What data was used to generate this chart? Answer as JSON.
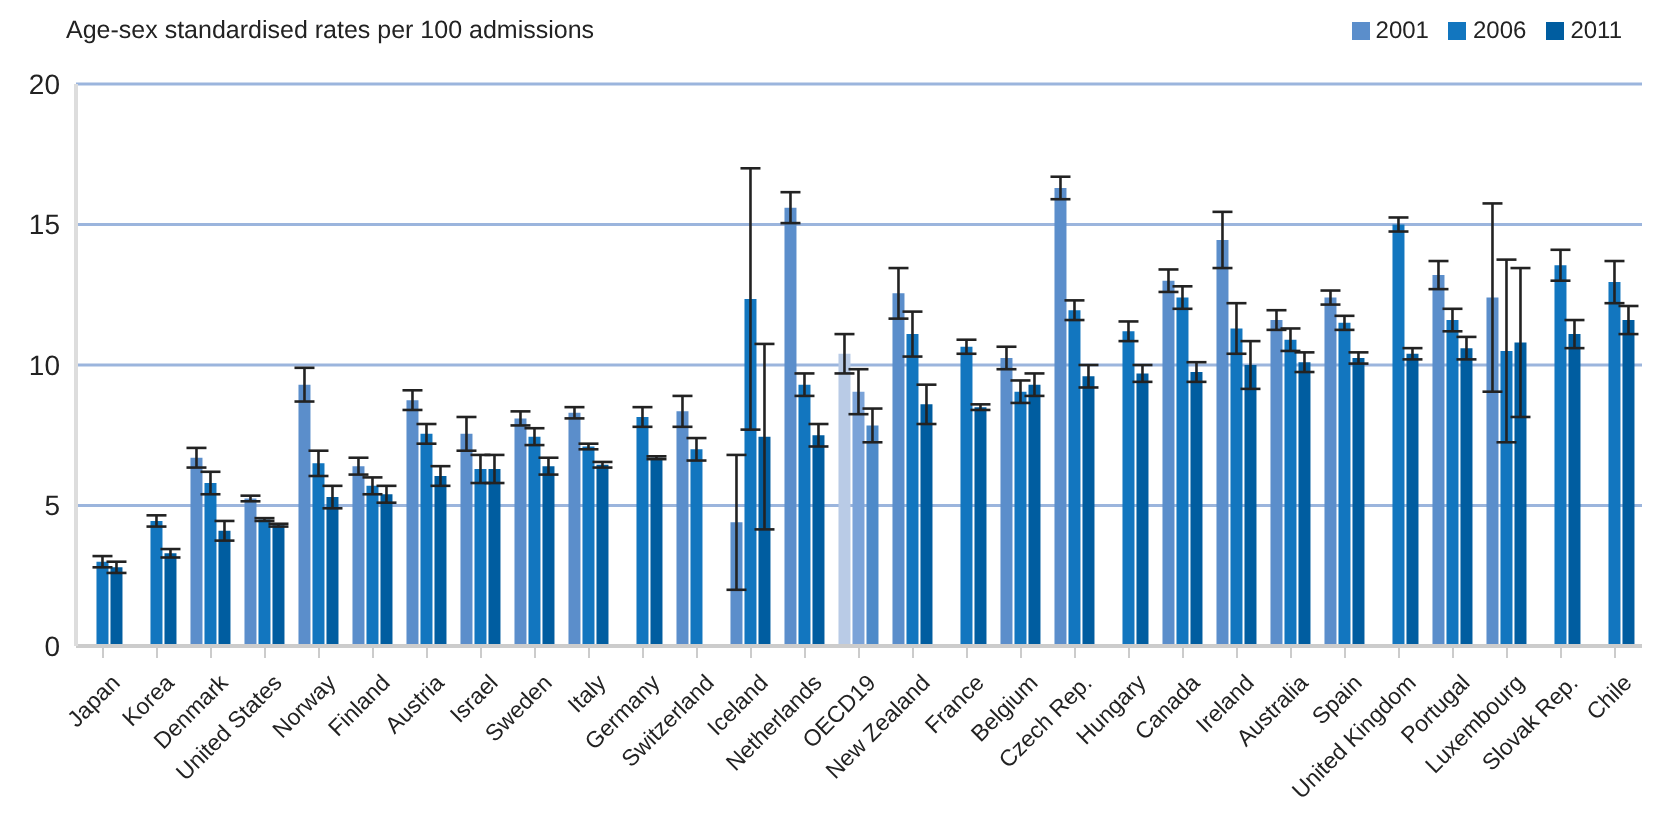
{
  "chart_data": {
    "type": "bar",
    "ylabel": "Age-sex standardised rates per 100 admissions",
    "categories": [
      "Japan",
      "Korea",
      "Denmark",
      "United States",
      "Norway",
      "Finland",
      "Austria",
      "Israel",
      "Sweden",
      "Italy",
      "Germany",
      "Switzerland",
      "Iceland",
      "Netherlands",
      "OECD19",
      "New Zealand",
      "France",
      "Belgium",
      "Czech Rep.",
      "Hungary",
      "Canada",
      "Ireland",
      "Australia",
      "Spain",
      "United Kingdom",
      "Portugal",
      "Luxembourg",
      "Slovak Rep.",
      "Chile"
    ],
    "series": [
      {
        "name": "2001",
        "color": "#5b8ecb",
        "colors": [
          "#5b8ecb",
          "#5b8ecb",
          "#5b8ecb",
          "#5b8ecb",
          "#5b8ecb",
          "#5b8ecb",
          "#5b8ecb",
          "#5b8ecb",
          "#5b8ecb",
          "#5b8ecb",
          "#5b8ecb",
          "#5b8ecb",
          "#5b8ecb",
          "#5b8ecb",
          "#b9cbe6",
          "#5b8ecb",
          "#5b8ecb",
          "#5b8ecb",
          "#5b8ecb",
          "#5b8ecb",
          "#5b8ecb",
          "#5b8ecb",
          "#5b8ecb",
          "#5b8ecb",
          "#5b8ecb",
          "#5b8ecb",
          "#5b8ecb",
          "#5b8ecb",
          "#5b8ecb"
        ],
        "values": [
          null,
          null,
          6.7,
          5.25,
          9.3,
          6.4,
          8.75,
          7.55,
          8.1,
          8.3,
          null,
          8.35,
          4.4,
          15.6,
          10.4,
          12.55,
          null,
          10.25,
          16.3,
          null,
          13.0,
          14.45,
          11.6,
          12.4,
          null,
          13.2,
          12.4,
          null,
          null
        ],
        "errors": [
          null,
          null,
          0.35,
          0.1,
          0.6,
          0.3,
          0.35,
          0.6,
          0.25,
          0.2,
          null,
          0.55,
          2.4,
          0.55,
          0.7,
          0.9,
          null,
          0.4,
          0.4,
          null,
          0.4,
          1.0,
          0.35,
          0.25,
          null,
          0.5,
          3.35,
          null,
          null
        ]
      },
      {
        "name": "2006",
        "color": "#1276bf",
        "colors": [
          "#1276bf",
          "#1276bf",
          "#1276bf",
          "#1276bf",
          "#1276bf",
          "#1276bf",
          "#1276bf",
          "#1276bf",
          "#1276bf",
          "#1276bf",
          "#1276bf",
          "#1276bf",
          "#1276bf",
          "#1276bf",
          "#7ba3d8",
          "#1276bf",
          "#1276bf",
          "#1276bf",
          "#1276bf",
          "#1276bf",
          "#1276bf",
          "#1276bf",
          "#1276bf",
          "#1276bf",
          "#1276bf",
          "#1276bf",
          "#1276bf",
          "#1276bf",
          "#1276bf"
        ],
        "values": [
          3.0,
          4.45,
          5.8,
          4.5,
          6.5,
          5.7,
          7.55,
          6.3,
          7.45,
          7.1,
          8.15,
          7.0,
          12.35,
          9.3,
          9.05,
          11.1,
          10.65,
          9.05,
          11.95,
          11.2,
          12.4,
          11.3,
          10.9,
          11.5,
          15.0,
          11.6,
          10.5,
          13.55,
          12.95
        ],
        "errors": [
          0.2,
          0.2,
          0.4,
          0.05,
          0.45,
          0.3,
          0.35,
          0.5,
          0.3,
          0.1,
          0.35,
          0.4,
          4.65,
          0.4,
          0.8,
          0.8,
          0.25,
          0.4,
          0.35,
          0.35,
          0.4,
          0.9,
          0.4,
          0.25,
          0.25,
          0.4,
          3.25,
          0.55,
          0.75
        ]
      },
      {
        "name": "2011",
        "color": "#005da0",
        "colors": [
          "#005da0",
          "#005da0",
          "#005da0",
          "#005da0",
          "#005da0",
          "#005da0",
          "#005da0",
          "#005da0",
          "#005da0",
          "#005da0",
          "#005da0",
          "#005da0",
          "#005da0",
          "#005da0",
          "#4d8ac9",
          "#005da0",
          "#005da0",
          "#005da0",
          "#005da0",
          "#005da0",
          "#005da0",
          "#005da0",
          "#005da0",
          "#005da0",
          "#005da0",
          "#005da0",
          "#005da0",
          "#005da0",
          "#005da0"
        ],
        "values": [
          2.8,
          3.3,
          4.1,
          4.3,
          5.3,
          5.4,
          6.05,
          6.3,
          6.4,
          6.45,
          6.7,
          null,
          7.45,
          7.5,
          7.85,
          8.6,
          8.5,
          9.3,
          9.6,
          9.7,
          9.75,
          10.0,
          10.1,
          10.25,
          10.4,
          10.6,
          10.8,
          11.1,
          11.6
        ],
        "errors": [
          0.2,
          0.15,
          0.35,
          0.05,
          0.4,
          0.3,
          0.35,
          0.5,
          0.3,
          0.1,
          0.05,
          null,
          3.3,
          0.4,
          0.6,
          0.7,
          0.1,
          0.4,
          0.4,
          0.3,
          0.35,
          0.85,
          0.35,
          0.2,
          0.2,
          0.4,
          2.65,
          0.5,
          0.5
        ]
      }
    ],
    "ylim": [
      0,
      20
    ],
    "yticks": [
      0,
      5,
      10,
      15,
      20
    ],
    "grid": "y",
    "legend": "top right"
  }
}
